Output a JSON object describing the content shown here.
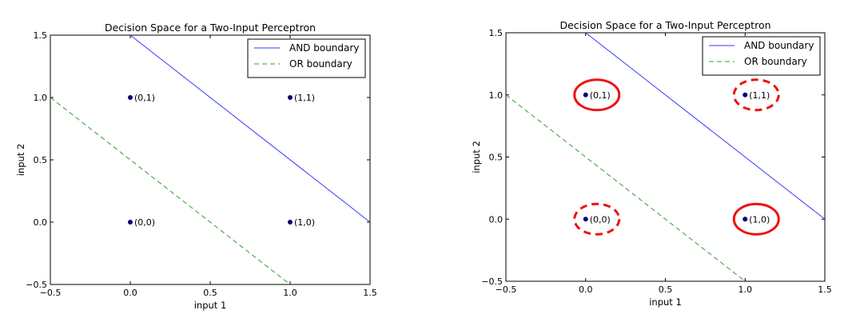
{
  "chart_data": [
    {
      "type": "line",
      "title": "Decision Space for a Two-Input Perceptron",
      "xlabel": "input 1",
      "ylabel": "input 2",
      "xlim": [
        -0.5,
        1.5
      ],
      "ylim": [
        -0.5,
        1.5
      ],
      "xticks": [
        -0.5,
        0.0,
        0.5,
        1.0,
        1.5
      ],
      "yticks": [
        -0.5,
        0.0,
        0.5,
        1.0,
        1.5
      ],
      "xtick_labels": [
        "−0.5",
        "0.0",
        "0.5",
        "1.0",
        "1.5"
      ],
      "ytick_labels": [
        "−0.5",
        "0.0",
        "0.5",
        "1.0",
        "1.5"
      ],
      "grid": false,
      "legend_position": "top-right",
      "series": [
        {
          "name": "AND boundary",
          "style": "solid",
          "color": "#3a3aff",
          "x": [
            0.0,
            1.5
          ],
          "y": [
            1.5,
            0.0
          ]
        },
        {
          "name": "OR boundary",
          "style": "dashed",
          "color": "#2ca02c",
          "x": [
            -0.5,
            1.0
          ],
          "y": [
            1.0,
            -0.5
          ]
        }
      ],
      "points": [
        {
          "x": 0,
          "y": 1,
          "label": "(0,1)"
        },
        {
          "x": 1,
          "y": 1,
          "label": "(1,1)"
        },
        {
          "x": 0,
          "y": 0,
          "label": "(0,0)"
        },
        {
          "x": 1,
          "y": 0,
          "label": "(1,0)"
        }
      ],
      "highlights": []
    },
    {
      "type": "line",
      "title": "Decision Space for a Two-Input Perceptron",
      "xlabel": "input 1",
      "ylabel": "input 2",
      "xlim": [
        -0.5,
        1.5
      ],
      "ylim": [
        -0.5,
        1.5
      ],
      "xticks": [
        -0.5,
        0.0,
        0.5,
        1.0,
        1.5
      ],
      "yticks": [
        -0.5,
        0.0,
        0.5,
        1.0,
        1.5
      ],
      "xtick_labels": [
        "−0.5",
        "0.0",
        "0.5",
        "1.0",
        "1.5"
      ],
      "ytick_labels": [
        "−0.5",
        "0.0",
        "0.5",
        "1.0",
        "1.5"
      ],
      "grid": false,
      "legend_position": "top-right",
      "series": [
        {
          "name": "AND boundary",
          "style": "solid",
          "color": "#3a3aff",
          "x": [
            0.0,
            1.5
          ],
          "y": [
            1.5,
            0.0
          ]
        },
        {
          "name": "OR boundary",
          "style": "dashed",
          "color": "#2ca02c",
          "x": [
            -0.5,
            1.0
          ],
          "y": [
            1.0,
            -0.5
          ]
        }
      ],
      "points": [
        {
          "x": 0,
          "y": 1,
          "label": "(0,1)"
        },
        {
          "x": 1,
          "y": 1,
          "label": "(1,1)"
        },
        {
          "x": 0,
          "y": 0,
          "label": "(0,0)"
        },
        {
          "x": 1,
          "y": 0,
          "label": "(1,0)"
        }
      ],
      "highlights": [
        {
          "x": 0,
          "y": 1,
          "style": "solid",
          "color": "#ee1111"
        },
        {
          "x": 1,
          "y": 1,
          "style": "dashed",
          "color": "#ee1111"
        },
        {
          "x": 0,
          "y": 0,
          "style": "dashed",
          "color": "#ee1111"
        },
        {
          "x": 1,
          "y": 0,
          "style": "solid",
          "color": "#ee1111"
        }
      ]
    }
  ]
}
